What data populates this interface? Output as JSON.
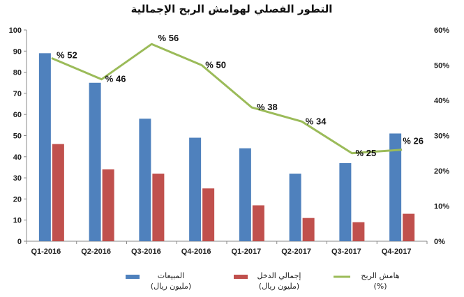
{
  "chart_data": {
    "type": "bar",
    "title": "التطور الفصلي لهوامش الربح الإجمالية",
    "categories": [
      "Q1-2016",
      "Q2-2016",
      "Q3-2016",
      "Q4-2016",
      "Q1-2017",
      "Q2-2017",
      "Q3-2017",
      "Q4-2017"
    ],
    "series": [
      {
        "name": "المبيعات",
        "name_unit": "(مليون ريال)",
        "type": "bar",
        "axis": "left",
        "color": "#4f81bd",
        "values": [
          89,
          75,
          58,
          49,
          44,
          32,
          37,
          51
        ]
      },
      {
        "name": "إجمالي الدخل",
        "name_unit": "(مليون ريال)",
        "type": "bar",
        "axis": "left",
        "color": "#c0504d",
        "values": [
          46,
          34,
          32,
          25,
          17,
          11,
          9,
          13
        ]
      },
      {
        "name": "هامش الربح",
        "name_unit": "(%)",
        "type": "line",
        "axis": "right",
        "color": "#9bbb59",
        "values": [
          52,
          46,
          56,
          50,
          38,
          34,
          25,
          26
        ],
        "labels": [
          "% 52",
          "% 46",
          "% 56",
          "% 50",
          "% 38",
          "% 34",
          "% 25",
          "% 26"
        ]
      }
    ],
    "y_left": {
      "min": 0,
      "max": 100,
      "step": 10,
      "ticks": [
        "0",
        "10",
        "20",
        "30",
        "40",
        "50",
        "60",
        "70",
        "80",
        "90",
        "100"
      ]
    },
    "y_right": {
      "min": 0,
      "max": 60,
      "step": 10,
      "ticks": [
        "0%",
        "10%",
        "20%",
        "30%",
        "40%",
        "50%",
        "60%"
      ]
    },
    "grid": false,
    "legend_position": "bottom"
  }
}
